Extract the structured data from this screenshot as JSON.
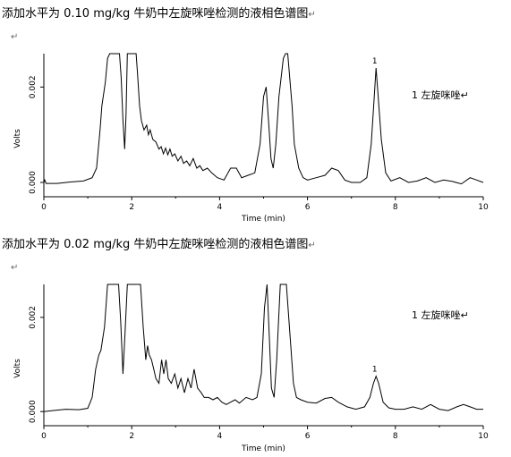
{
  "chart_data": [
    {
      "type": "line",
      "title": "添加水平为 0.10 mg/kg 牛奶中左旋咪唑检测的液相色谱图",
      "para_mark": "↵",
      "xlabel": "Time (min)",
      "ylabel": "Volts",
      "xlim": [
        0,
        10
      ],
      "ylim": [
        -0.0003,
        0.0027
      ],
      "x_ticks": [
        "0",
        "2",
        "4",
        "6",
        "8",
        "10"
      ],
      "y_ticks": [
        "0.000",
        "0.002"
      ],
      "legend": "1 左旋咪唑↵",
      "peak_label": "1",
      "peak_x": 7.55,
      "series": [
        {
          "x": [
            0,
            0.02,
            0.05,
            0.3,
            0.6,
            0.9,
            1.1,
            1.2,
            1.28,
            1.32,
            1.4,
            1.45,
            1.5,
            1.72,
            1.76,
            1.8,
            1.84,
            1.87,
            1.9,
            2.1,
            2.13,
            2.18,
            2.22,
            2.28,
            2.34,
            2.38,
            2.42,
            2.48,
            2.55,
            2.62,
            2.67,
            2.72,
            2.77,
            2.82,
            2.87,
            2.92,
            2.98,
            3.05,
            3.12,
            3.18,
            3.25,
            3.32,
            3.4,
            3.48,
            3.55,
            3.62,
            3.72,
            3.82,
            3.95,
            4.1,
            4.25,
            4.38,
            4.5,
            4.65,
            4.8,
            4.92,
            5.0,
            5.06,
            5.12,
            5.17,
            5.22,
            5.28,
            5.35,
            5.45,
            5.5,
            5.55,
            5.65,
            5.7,
            5.8,
            5.9,
            6.0,
            6.2,
            6.4,
            6.55,
            6.7,
            6.85,
            7.0,
            7.2,
            7.35,
            7.45,
            7.52,
            7.56,
            7.6,
            7.68,
            7.78,
            7.9,
            8.1,
            8.3,
            8.5,
            8.7,
            8.9,
            9.1,
            9.3,
            9.5,
            9.7,
            9.85,
            10.0
          ],
          "values": [
            0.0,
            5e-05,
            -2e-05,
            -2e-05,
            1e-05,
            3e-05,
            0.0001,
            0.0003,
            0.0011,
            0.0016,
            0.0021,
            0.0026,
            0.0027,
            0.0027,
            0.0022,
            0.0013,
            0.0007,
            0.0014,
            0.0027,
            0.0027,
            0.0023,
            0.0016,
            0.0013,
            0.0011,
            0.0012,
            0.001,
            0.0011,
            0.0009,
            0.00085,
            0.0007,
            0.00075,
            0.0006,
            0.00072,
            0.00058,
            0.0007,
            0.00055,
            0.0006,
            0.00045,
            0.00055,
            0.0004,
            0.00045,
            0.00035,
            0.0005,
            0.0003,
            0.00035,
            0.00025,
            0.0003,
            0.0002,
            0.0001,
            5e-05,
            0.0003,
            0.0003,
            0.0001,
            0.00015,
            0.0002,
            0.0008,
            0.0018,
            0.002,
            0.0012,
            0.0005,
            0.0003,
            0.0008,
            0.0018,
            0.0026,
            0.0027,
            0.0027,
            0.0016,
            0.0008,
            0.0003,
            0.0001,
            5e-05,
            0.0001,
            0.00015,
            0.0003,
            0.00025,
            5e-05,
            0.0,
            0.0,
            0.0001,
            0.0008,
            0.0018,
            0.0024,
            0.0019,
            0.0009,
            0.0002,
            3e-05,
            0.0001,
            0.0,
            3e-05,
            0.0001,
            0.0,
            5e-05,
            2e-05,
            -3e-05,
            0.0001,
            5e-05,
            0.0
          ]
        }
      ]
    },
    {
      "type": "line",
      "title": "添加水平为 0.02 mg/kg 牛奶中左旋咪唑检测的液相色谱图",
      "para_mark": "↵",
      "xlabel": "Time (min)",
      "ylabel": "Volts",
      "xlim": [
        0,
        10
      ],
      "ylim": [
        -0.0003,
        0.0027
      ],
      "x_ticks": [
        "0",
        "2",
        "4",
        "6",
        "8",
        "10"
      ],
      "y_ticks": [
        "0.000",
        "0.002"
      ],
      "legend": "1 左旋咪唑↵",
      "peak_label": "1",
      "peak_x": 7.55,
      "series": [
        {
          "x": [
            0,
            0.2,
            0.5,
            0.8,
            1.0,
            1.1,
            1.18,
            1.25,
            1.3,
            1.38,
            1.45,
            1.5,
            1.7,
            1.75,
            1.8,
            1.85,
            1.9,
            2.2,
            2.26,
            2.32,
            2.36,
            2.4,
            2.45,
            2.5,
            2.55,
            2.62,
            2.68,
            2.73,
            2.78,
            2.83,
            2.9,
            2.98,
            3.05,
            3.12,
            3.2,
            3.28,
            3.35,
            3.42,
            3.5,
            3.58,
            3.65,
            3.75,
            3.85,
            3.95,
            4.05,
            4.15,
            4.25,
            4.35,
            4.45,
            4.6,
            4.75,
            4.85,
            4.95,
            5.02,
            5.08,
            5.13,
            5.18,
            5.24,
            5.3,
            5.38,
            5.45,
            5.52,
            5.62,
            5.68,
            5.75,
            5.85,
            6.0,
            6.2,
            6.4,
            6.55,
            6.7,
            6.9,
            7.1,
            7.3,
            7.42,
            7.5,
            7.56,
            7.62,
            7.72,
            7.85,
            8.0,
            8.2,
            8.4,
            8.6,
            8.7,
            8.8,
            9.0,
            9.2,
            9.4,
            9.55,
            9.7,
            9.85,
            10.0
          ],
          "values": [
            0.0,
            2e-05,
            5e-05,
            4e-05,
            7e-05,
            0.0003,
            0.0009,
            0.0012,
            0.0013,
            0.0018,
            0.0027,
            0.0027,
            0.0027,
            0.0019,
            0.0008,
            0.0017,
            0.0027,
            0.0027,
            0.0018,
            0.0011,
            0.0014,
            0.0012,
            0.0011,
            0.0009,
            0.0007,
            0.0006,
            0.0011,
            0.0008,
            0.0011,
            0.0007,
            0.0006,
            0.0008,
            0.0005,
            0.0007,
            0.0004,
            0.0007,
            0.0005,
            0.0009,
            0.0005,
            0.0004,
            0.0003,
            0.0003,
            0.00025,
            0.0003,
            0.0002,
            0.00015,
            0.0002,
            0.00025,
            0.00018,
            0.0003,
            0.00025,
            0.0003,
            0.0008,
            0.0022,
            0.0027,
            0.0016,
            0.0005,
            0.0003,
            0.0011,
            0.0027,
            0.0027,
            0.0027,
            0.0014,
            0.0006,
            0.0003,
            0.00025,
            0.0002,
            0.00018,
            0.00028,
            0.0003,
            0.0002,
            0.0001,
            5e-05,
            0.0001,
            0.0003,
            0.0006,
            0.00075,
            0.0006,
            0.0002,
            8e-05,
            5e-05,
            5e-05,
            0.0001,
            5e-05,
            0.0001,
            0.00015,
            5e-05,
            2e-05,
            0.0001,
            0.00015,
            0.0001,
            5e-05,
            5e-05
          ]
        }
      ]
    }
  ]
}
